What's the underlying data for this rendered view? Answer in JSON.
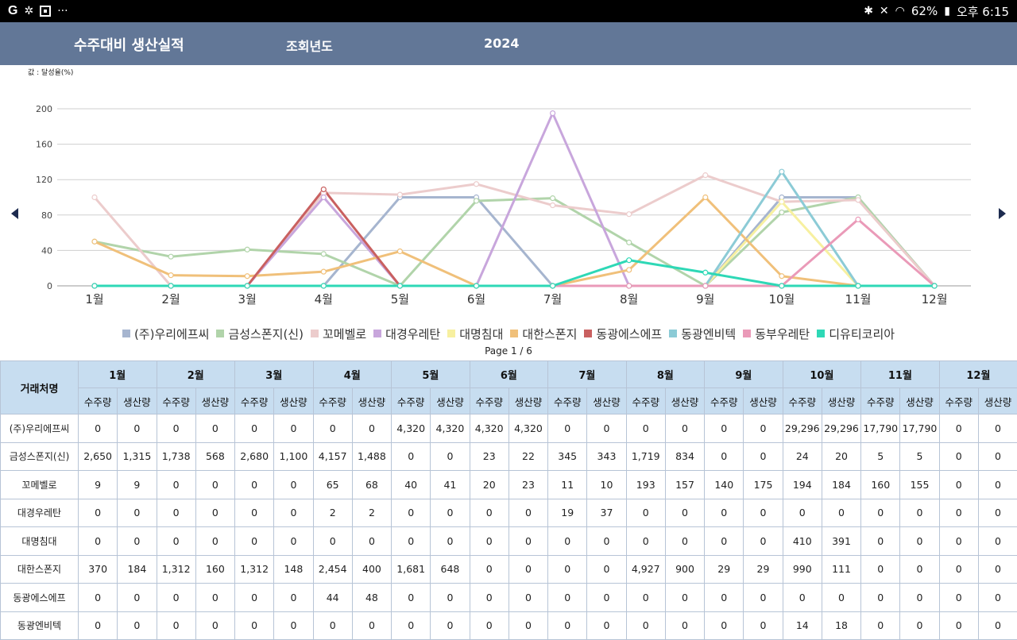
{
  "statusbar": {
    "icons": [
      "g-icon",
      "pinwheel-icon",
      "flipboard-icon",
      "more-dots-icon",
      "bluetooth-icon",
      "mute-icon",
      "wifi-icon",
      "battery-icon"
    ],
    "g_label": "G",
    "more": "···",
    "battery": "62%",
    "time": "오후 6:15"
  },
  "header": {
    "title": "수주대비 생산실적",
    "year_label": "조회년도",
    "year": "2024"
  },
  "chart_note": "값 : 달성율(%)",
  "pager": "Page 1 / 6",
  "chart_data": {
    "type": "line",
    "title": "",
    "xlabel": "",
    "ylabel": "",
    "ylim": [
      0,
      200
    ],
    "yticks": [
      0,
      40,
      80,
      120,
      160,
      200
    ],
    "grid": true,
    "legend": "bottom",
    "categories": [
      "1월",
      "2월",
      "3월",
      "4월",
      "5월",
      "6월",
      "7월",
      "8월",
      "9월",
      "10월",
      "11월",
      "12월"
    ],
    "series": [
      {
        "name": "(주)우리에프씨",
        "color": "#a6b5cf",
        "values": [
          0,
          0,
          0,
          0,
          100,
          100,
          0,
          0,
          0,
          100,
          100,
          0
        ]
      },
      {
        "name": "금성스폰지(신)",
        "color": "#b1d4aa",
        "values": [
          50,
          33,
          41,
          36,
          0,
          96,
          99,
          49,
          0,
          83,
          100,
          0
        ]
      },
      {
        "name": "꼬메벨로",
        "color": "#eccccc",
        "values": [
          100,
          0,
          0,
          105,
          103,
          115,
          91,
          81,
          125,
          95,
          97,
          0
        ]
      },
      {
        "name": "대경우레탄",
        "color": "#c8a6dc",
        "values": [
          0,
          0,
          0,
          100,
          0,
          0,
          195,
          0,
          0,
          0,
          0,
          0
        ]
      },
      {
        "name": "대명침대",
        "color": "#f7f0a0",
        "values": [
          0,
          0,
          0,
          0,
          0,
          0,
          0,
          0,
          0,
          95,
          0,
          0
        ]
      },
      {
        "name": "대한스폰지",
        "color": "#f0c07a",
        "values": [
          50,
          12,
          11,
          16,
          39,
          0,
          0,
          18,
          100,
          11,
          0,
          0
        ]
      },
      {
        "name": "동광에스에프",
        "color": "#c96060",
        "values": [
          0,
          0,
          0,
          109,
          0,
          0,
          0,
          0,
          0,
          0,
          0,
          0
        ]
      },
      {
        "name": "동광엔비텍",
        "color": "#8ccbd6",
        "values": [
          0,
          0,
          0,
          0,
          0,
          0,
          0,
          0,
          0,
          129,
          0,
          0
        ]
      },
      {
        "name": "동부우레탄",
        "color": "#ea9ab8",
        "values": [
          0,
          0,
          0,
          0,
          0,
          0,
          0,
          0,
          0,
          0,
          75,
          0
        ]
      },
      {
        "name": "디유티코리아",
        "color": "#2ed8b6",
        "values": [
          0,
          0,
          0,
          0,
          0,
          0,
          0,
          29,
          15,
          0,
          0,
          0
        ]
      }
    ]
  },
  "table": {
    "corner": "거래처명",
    "months": [
      "1월",
      "2월",
      "3월",
      "4월",
      "5월",
      "6월",
      "7월",
      "8월",
      "9월",
      "10월",
      "11월",
      "12월"
    ],
    "sub_order": "수주량",
    "sub_prod": "생산량",
    "rows": [
      {
        "name": "(주)우리에프씨",
        "values": [
          "0",
          "0",
          "0",
          "0",
          "0",
          "0",
          "0",
          "0",
          "4,320",
          "4,320",
          "4,320",
          "4,320",
          "0",
          "0",
          "0",
          "0",
          "0",
          "0",
          "29,296",
          "29,296",
          "17,790",
          "17,790",
          "0",
          "0"
        ]
      },
      {
        "name": "금성스폰지(신)",
        "values": [
          "2,650",
          "1,315",
          "1,738",
          "568",
          "2,680",
          "1,100",
          "4,157",
          "1,488",
          "0",
          "0",
          "23",
          "22",
          "345",
          "343",
          "1,719",
          "834",
          "0",
          "0",
          "24",
          "20",
          "5",
          "5",
          "0",
          "0"
        ]
      },
      {
        "name": "꼬메벨로",
        "values": [
          "9",
          "9",
          "0",
          "0",
          "0",
          "0",
          "65",
          "68",
          "40",
          "41",
          "20",
          "23",
          "11",
          "10",
          "193",
          "157",
          "140",
          "175",
          "194",
          "184",
          "160",
          "155",
          "0",
          "0"
        ]
      },
      {
        "name": "대경우레탄",
        "values": [
          "0",
          "0",
          "0",
          "0",
          "0",
          "0",
          "2",
          "2",
          "0",
          "0",
          "0",
          "0",
          "19",
          "37",
          "0",
          "0",
          "0",
          "0",
          "0",
          "0",
          "0",
          "0",
          "0",
          "0"
        ]
      },
      {
        "name": "대명침대",
        "values": [
          "0",
          "0",
          "0",
          "0",
          "0",
          "0",
          "0",
          "0",
          "0",
          "0",
          "0",
          "0",
          "0",
          "0",
          "0",
          "0",
          "0",
          "0",
          "410",
          "391",
          "0",
          "0",
          "0",
          "0"
        ]
      },
      {
        "name": "대한스폰지",
        "values": [
          "370",
          "184",
          "1,312",
          "160",
          "1,312",
          "148",
          "2,454",
          "400",
          "1,681",
          "648",
          "0",
          "0",
          "0",
          "0",
          "4,927",
          "900",
          "29",
          "29",
          "990",
          "111",
          "0",
          "0",
          "0",
          "0"
        ]
      },
      {
        "name": "동광에스에프",
        "values": [
          "0",
          "0",
          "0",
          "0",
          "0",
          "0",
          "44",
          "48",
          "0",
          "0",
          "0",
          "0",
          "0",
          "0",
          "0",
          "0",
          "0",
          "0",
          "0",
          "0",
          "0",
          "0",
          "0",
          "0"
        ]
      },
      {
        "name": "동광엔비텍",
        "values": [
          "0",
          "0",
          "0",
          "0",
          "0",
          "0",
          "0",
          "0",
          "0",
          "0",
          "0",
          "0",
          "0",
          "0",
          "0",
          "0",
          "0",
          "0",
          "14",
          "18",
          "0",
          "0",
          "0",
          "0"
        ]
      }
    ]
  }
}
